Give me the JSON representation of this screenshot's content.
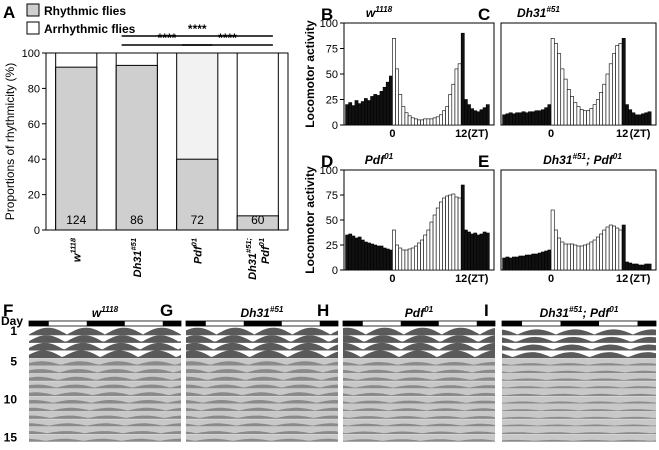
{
  "panel_letters": {
    "A": "A",
    "B": "B",
    "C": "C",
    "D": "D",
    "E": "E",
    "F": "F",
    "G": "G",
    "H": "H",
    "I": "I"
  },
  "chart_data": [
    {
      "type": "bar",
      "panel": "A",
      "legend": [
        "Rhythmic flies",
        "Arrhythmic flies"
      ],
      "legend_colors": [
        "#cfcfcf",
        "#ffffff"
      ],
      "categories": [
        "w1118",
        "Dh31#51",
        "Pdf01",
        "Dh31#51; Pdf01"
      ],
      "category_labels": [
        {
          "base": "w",
          "sup": "1118",
          "line2": ""
        },
        {
          "base": "Dh31",
          "sup": "#51",
          "line2": ""
        },
        {
          "base": "Pdf",
          "sup": "01",
          "line2": ""
        },
        {
          "base": "Dh31",
          "sup": "#51",
          "line2_base": "Pdf",
          "line2_sup": "01",
          "sep": ";"
        }
      ],
      "series": [
        {
          "name": "Rhythmic flies",
          "values": [
            92,
            93,
            40,
            8
          ]
        },
        {
          "name": "Arrhythmic flies",
          "values": [
            8,
            7,
            60,
            92
          ]
        }
      ],
      "n_labels": [
        "124",
        "86",
        "72",
        "60"
      ],
      "ylabel": "Proportions of rhythmicity (%)",
      "ylim": [
        0,
        100
      ],
      "yticks": [
        "0",
        "20",
        "40",
        "60",
        "80",
        "100"
      ],
      "significance": [
        {
          "from": 1,
          "to": 3,
          "label": "****"
        },
        {
          "from": 1,
          "to": 2,
          "label": "****"
        },
        {
          "from": 2,
          "to": 3,
          "label": "****"
        }
      ]
    },
    {
      "type": "bar",
      "panel": "B",
      "title_base": "w",
      "title_sup": "1118",
      "ylabel": "Locomotor activity",
      "ylim": [
        0,
        100
      ],
      "yticks": [
        "0",
        "25",
        "50",
        "75",
        "100"
      ],
      "xticks": [
        "0",
        "12",
        "(ZT)"
      ],
      "values": [
        20,
        22,
        19,
        24,
        21,
        23,
        26,
        24,
        28,
        30,
        29,
        33,
        37,
        42,
        48,
        85,
        55,
        30,
        18,
        12,
        9,
        7,
        6,
        5,
        5,
        6,
        6,
        6,
        7,
        8,
        10,
        14,
        18,
        30,
        40,
        55,
        60,
        90,
        25,
        20,
        16,
        14,
        13,
        15,
        17,
        20
      ]
    },
    {
      "type": "bar",
      "panel": "C",
      "title_base": "Dh31",
      "title_sup": "#51",
      "ylim": [
        0,
        100
      ],
      "xticks": [
        "0",
        "12",
        "(ZT)"
      ],
      "values": [
        10,
        11,
        12,
        11,
        12,
        12,
        13,
        12,
        13,
        13,
        14,
        14,
        15,
        17,
        20,
        85,
        80,
        70,
        55,
        45,
        35,
        28,
        22,
        18,
        15,
        14,
        14,
        16,
        20,
        25,
        32,
        40,
        50,
        60,
        70,
        78,
        80,
        85,
        20,
        15,
        12,
        10,
        10,
        11,
        12,
        13
      ]
    },
    {
      "type": "bar",
      "panel": "D",
      "title_base": "Pdf",
      "title_sup": "01",
      "ylabel": "Locomotor activity",
      "ylim": [
        0,
        100
      ],
      "yticks": [
        "0",
        "25",
        "50",
        "75",
        "100"
      ],
      "xticks": [
        "0",
        "12",
        "(ZT)"
      ],
      "values": [
        35,
        36,
        34,
        32,
        33,
        30,
        28,
        27,
        26,
        25,
        24,
        24,
        22,
        21,
        20,
        40,
        25,
        22,
        20,
        20,
        21,
        22,
        24,
        27,
        30,
        35,
        40,
        48,
        55,
        62,
        68,
        72,
        74,
        75,
        76,
        73,
        72,
        85,
        40,
        38,
        36,
        37,
        35,
        36,
        38,
        37
      ]
    },
    {
      "type": "bar",
      "panel": "E",
      "title_base": "Dh31",
      "title_sup": "#51",
      "title_sep": "; ",
      "title2_base": "Pdf",
      "title2_sup": "01",
      "ylim": [
        0,
        100
      ],
      "xticks": [
        "0",
        "12",
        "(ZT)"
      ],
      "values": [
        12,
        13,
        12,
        13,
        13,
        14,
        14,
        15,
        15,
        16,
        16,
        17,
        18,
        19,
        20,
        60,
        40,
        32,
        28,
        26,
        26,
        26,
        25,
        24,
        24,
        25,
        26,
        28,
        30,
        33,
        36,
        40,
        43,
        45,
        44,
        42,
        40,
        45,
        8,
        7,
        6,
        6,
        5,
        5,
        6,
        6
      ]
    },
    {
      "type": "heatmap",
      "panel": "F",
      "title_base": "w",
      "title_sup": "1118",
      "row_label_title": "Day",
      "row_labels": [
        "1",
        "5",
        "10",
        "15"
      ],
      "days": 15,
      "light_days": 4
    },
    {
      "type": "heatmap",
      "panel": "G",
      "title_base": "Dh31",
      "title_sup": "#51",
      "days": 15,
      "light_days": 4
    },
    {
      "type": "heatmap",
      "panel": "H",
      "title_base": "Pdf",
      "title_sup": "01",
      "days": 15,
      "light_days": 4
    },
    {
      "type": "heatmap",
      "panel": "I",
      "title_base": "Dh31",
      "title_sup": "#51",
      "title_sep": "; ",
      "title2_base": "Pdf",
      "title2_sup": "01",
      "days": 15,
      "light_days": 4
    }
  ]
}
